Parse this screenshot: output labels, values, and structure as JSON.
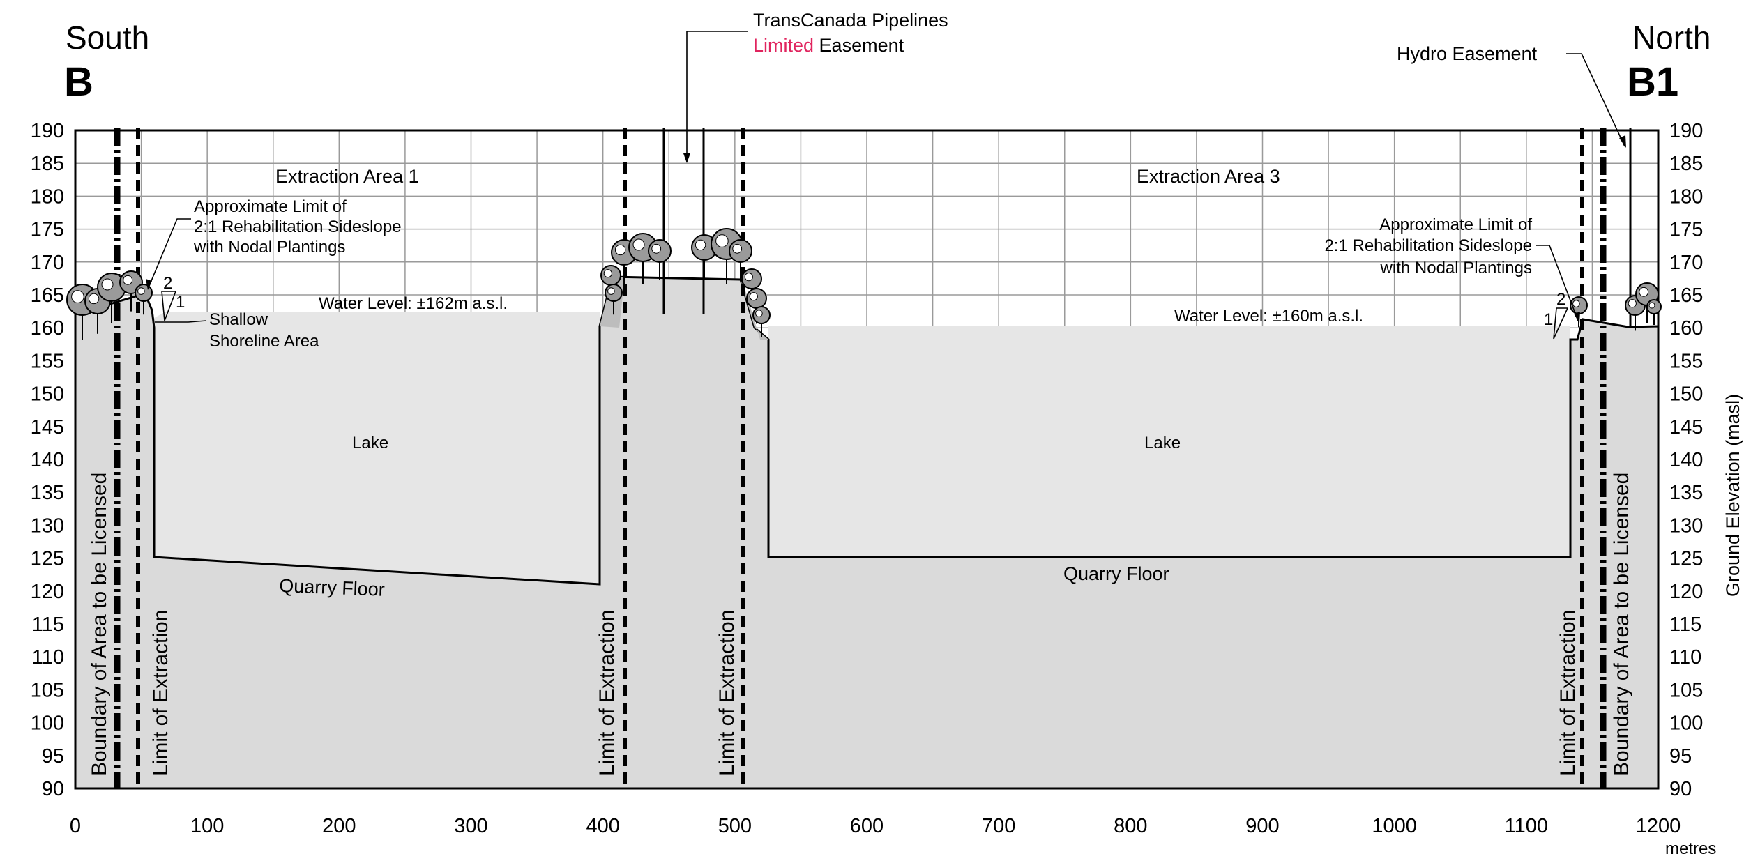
{
  "section": {
    "left_direction": "South",
    "left_label": "B",
    "right_direction": "North",
    "right_label": "B1"
  },
  "axes": {
    "y_ticks": [
      90,
      95,
      100,
      105,
      110,
      115,
      120,
      125,
      130,
      135,
      140,
      145,
      150,
      155,
      160,
      165,
      170,
      175,
      180,
      185,
      190
    ],
    "x_ticks": [
      0,
      100,
      200,
      300,
      400,
      500,
      600,
      700,
      800,
      900,
      1000,
      1100,
      1200
    ],
    "x_unit": "metres",
    "y_label": "Ground Elevation (masl)",
    "x_range": [
      0,
      1200
    ],
    "y_range": [
      90,
      190
    ]
  },
  "areas": {
    "area1_title": "Extraction Area 1",
    "area3_title": "Extraction Area 3",
    "lake": "Lake",
    "quarry_floor": "Quarry Floor",
    "water_level_1": "Water Level: ±162m a.s.l.",
    "water_level_3": "Water Level: ±160m a.s.l."
  },
  "annotations": {
    "tcpl_line1": "TransCanada Pipelines",
    "tcpl_limited": "Limited",
    "tcpl_easement": " Easement",
    "hydro": "Hydro Easement",
    "rehab_left": [
      "Approximate Limit of",
      "2:1 Rehabilitation Sideslope",
      "with Nodal Plantings"
    ],
    "rehab_right": [
      "Approximate Limit of",
      "2:1 Rehabilitation Sideslope",
      "with Nodal Plantings"
    ],
    "shallow": [
      "Shallow",
      "Shoreline Area"
    ],
    "slope_2": "2",
    "slope_1": "1"
  },
  "boundaries": {
    "licensed": "Boundary of Area to be Licensed",
    "extraction": "Limit of Extraction"
  },
  "colors": {
    "ground": "#dadada",
    "water": "#e6e6e6",
    "grid": "#9a9a9a",
    "limited_text": "#e0245e"
  }
}
